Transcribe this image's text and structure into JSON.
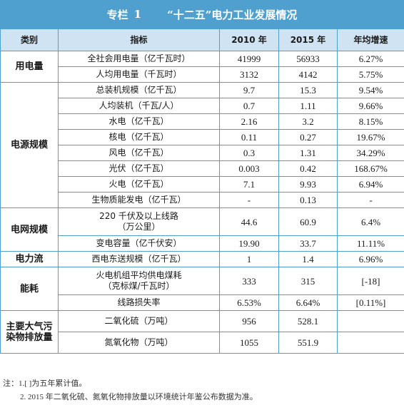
{
  "title": {
    "prefix": "专栏",
    "number": "1",
    "text": "“十二五”电力工业发展情况"
  },
  "headers": {
    "category": "类别",
    "indicator": "指标",
    "year2010": "2010 年",
    "year2015": "2015 年",
    "growth": "年均增速"
  },
  "groups": [
    {
      "category": "用电量",
      "rows": [
        {
          "indicator": "全社会用电量（亿千瓦时）",
          "v2010": "41999",
          "v2015": "56933",
          "growth": "6.27%"
        },
        {
          "indicator": "人均用电量（千瓦时）",
          "v2010": "3132",
          "v2015": "4142",
          "growth": "5.75%"
        }
      ]
    },
    {
      "category": "电源规模",
      "rows": [
        {
          "indicator": "总装机规模（亿千瓦）",
          "v2010": "9.7",
          "v2015": "15.3",
          "growth": "9.54%"
        },
        {
          "indicator": "人均装机（千瓦/人）",
          "v2010": "0.7",
          "v2015": "1.11",
          "growth": "9.66%"
        },
        {
          "indicator": "水电（亿千瓦）",
          "v2010": "2.16",
          "v2015": "3.2",
          "growth": "8.15%"
        },
        {
          "indicator": "核电（亿千瓦）",
          "v2010": "0.11",
          "v2015": "0.27",
          "growth": "19.67%"
        },
        {
          "indicator": "风电（亿千瓦）",
          "v2010": "0.3",
          "v2015": "1.31",
          "growth": "34.29%"
        },
        {
          "indicator": "光伏（亿千瓦）",
          "v2010": "0.003",
          "v2015": "0.42",
          "growth": "168.67%"
        },
        {
          "indicator": "火电（亿千瓦）",
          "v2010": "7.1",
          "v2015": "9.93",
          "growth": "6.94%"
        },
        {
          "indicator": "生物质能发电（亿千瓦）",
          "v2010": "-",
          "v2015": "0.13",
          "growth": "-"
        }
      ]
    },
    {
      "category": "电网规模",
      "rows": [
        {
          "indicator": "220 千伏及以上线路\n（万公里）",
          "v2010": "44.6",
          "v2015": "60.9",
          "growth": "6.4%"
        },
        {
          "indicator": "变电容量（亿千伏安）",
          "v2010": "19.90",
          "v2015": "33.7",
          "growth": "11.11%"
        }
      ]
    },
    {
      "category": "电力流",
      "rows": [
        {
          "indicator": "西电东送规模（亿千瓦）",
          "v2010": "1",
          "v2015": "1.4",
          "growth": "6.96%"
        }
      ]
    },
    {
      "category": "能耗",
      "rows": [
        {
          "indicator": "火电机组平均供电煤耗\n（克标煤/千瓦时）",
          "v2010": "333",
          "v2015": "315",
          "growth": "[-18]"
        },
        {
          "indicator": "线路损失率",
          "v2010": "6.53%",
          "v2015": "6.64%",
          "growth": "[0.11%]"
        }
      ]
    },
    {
      "category": "主要大气污\n染物排放量",
      "rows": [
        {
          "indicator": "二氧化硫（万吨）",
          "v2010": "956",
          "v2015": "528.1",
          "growth": ""
        },
        {
          "indicator": "氮氧化物（万吨）",
          "v2010": "1055",
          "v2015": "551.9",
          "growth": ""
        }
      ]
    }
  ],
  "notes": [
    "注：1.[ ]为五年累计值。",
    "2. 2015 年二氧化硫、氮氧化物排放量以环境统计年鉴公布数据为准。"
  ]
}
